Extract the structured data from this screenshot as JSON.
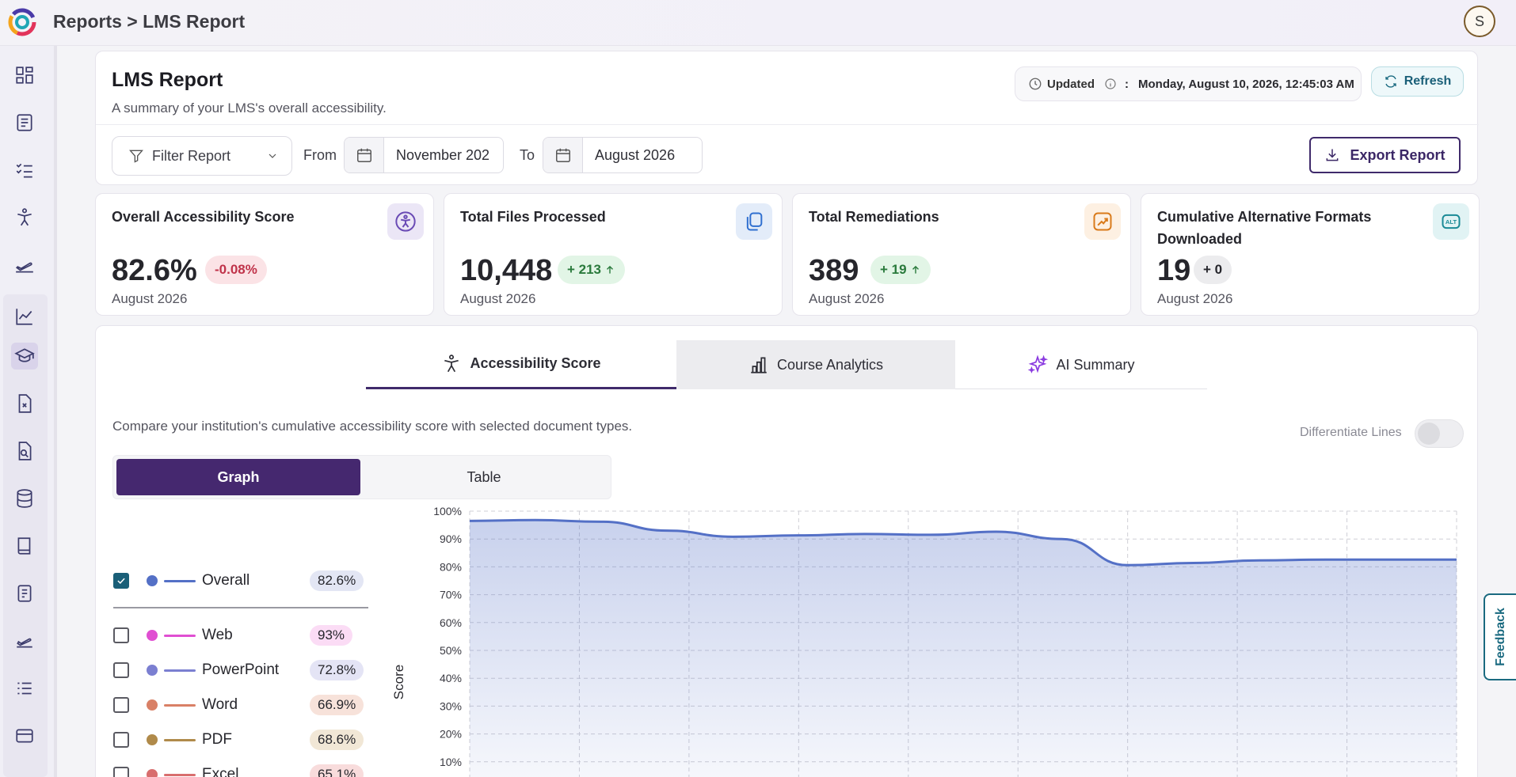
{
  "header": {
    "breadcrumb": "Reports > LMS Report",
    "avatar_initial": "S"
  },
  "sidebar": {
    "icons": [
      "dashboard-icon",
      "document-icon",
      "checklist-icon",
      "accessibility-icon",
      "plane-icon",
      "line-chart-icon",
      "graduation-cap-icon",
      "file-x-icon",
      "file-search-icon",
      "database-icon",
      "book-icon",
      "notes-icon",
      "plane-small-icon",
      "list-icon",
      "card-icon"
    ],
    "active": "graduation-cap-icon"
  },
  "report": {
    "title": "LMS Report",
    "subtitle": "A summary of your LMS's overall accessibility.",
    "updated_label": "Updated",
    "updated_separator": ":",
    "updated_value": "Monday, August 10, 2026, 12:45:03 AM",
    "refresh_label": "Refresh"
  },
  "filters": {
    "filter_label": "Filter Report",
    "from_label": "From",
    "from_value": "November 202",
    "to_label": "To",
    "to_value": "August 2026",
    "export_label": "Export Report"
  },
  "stats": [
    {
      "title": "Overall Accessibility Score",
      "value": "82.6%",
      "badge": "-0.08%",
      "period": "August 2026",
      "icon": "accessibility-icon",
      "icon_color": "#6a4bb5"
    },
    {
      "title": "Total Files Processed",
      "value": "10,448",
      "badge": "+ 213",
      "period": "August 2026",
      "icon": "copy-files-icon",
      "icon_color": "#2f6fd0"
    },
    {
      "title": "Total Remediations",
      "value": "389",
      "badge": "+ 19",
      "period": "August 2026",
      "icon": "trend-up-icon",
      "icon_color": "#d97a1a"
    },
    {
      "title": "Cumulative Alternative Formats Downloaded",
      "value": "19",
      "badge": "+ 0",
      "period": "August 2026",
      "icon": "alt-text-icon",
      "icon_color": "#1a8a96"
    }
  ],
  "tabs": [
    {
      "label": "Accessibility Score",
      "icon": "accessibility-icon",
      "active": true
    },
    {
      "label": "Course Analytics",
      "icon": "bar-chart-icon",
      "active": false
    },
    {
      "label": "AI Summary",
      "icon": "sparkle-icon",
      "active": false
    }
  ],
  "panel": {
    "description": "Compare your institution's cumulative accessibility score with selected document types.",
    "differentiate_label": "Differentiate Lines",
    "view_graph": "Graph",
    "view_table": "Table"
  },
  "legend": [
    {
      "name": "Overall",
      "value": "82.6%",
      "checked": true,
      "color": "#5470c6",
      "pill": "#e3e6f4"
    },
    {
      "name": "Web",
      "value": "93%",
      "checked": false,
      "color": "#e04fd2",
      "pill": "#fbdcf5"
    },
    {
      "name": "PowerPoint",
      "value": "72.8%",
      "checked": false,
      "color": "#7b7fd1",
      "pill": "#e4e4f5"
    },
    {
      "name": "Word",
      "value": "66.9%",
      "checked": false,
      "color": "#d98066",
      "pill": "#f7e2da"
    },
    {
      "name": "PDF",
      "value": "68.6%",
      "checked": false,
      "color": "#b08a4a",
      "pill": "#f1e7d6"
    },
    {
      "name": "Excel",
      "value": "65.1%",
      "checked": false,
      "color": "#d86e6e",
      "pill": "#f8dcdc"
    }
  ],
  "chart_data": {
    "type": "area",
    "title": "",
    "ylabel": "Score",
    "ylim": [
      10,
      100
    ],
    "yticks": [
      "100%",
      "90%",
      "80%",
      "70%",
      "60%",
      "50%",
      "40%",
      "30%",
      "20%",
      "10%"
    ],
    "grid": true,
    "series": [
      {
        "name": "Overall",
        "color": "#5470c6",
        "values": [
          96.5,
          96.8,
          96.2,
          93.0,
          90.8,
          91.3,
          91.8,
          91.5,
          92.6,
          90.0,
          80.6,
          81.4,
          82.3,
          82.6,
          82.6,
          82.6
        ]
      }
    ]
  },
  "feedback_label": "Feedback"
}
